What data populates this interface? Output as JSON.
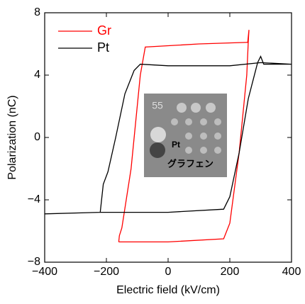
{
  "chart_data": {
    "type": "line",
    "xlabel": "Electric field (kV/cm)",
    "ylabel": "Polarization (nC)",
    "xlim": [
      -400,
      400
    ],
    "ylim": [
      -8,
      8
    ],
    "xticks": [
      {
        "value": -400,
        "label": "−400"
      },
      {
        "value": -200,
        "label": "−200"
      },
      0,
      200,
      400
    ],
    "yticks": [
      {
        "value": -8,
        "label": "−8"
      },
      {
        "value": -4,
        "label": "−4"
      },
      0,
      4,
      8
    ],
    "legend": "upper left",
    "series": [
      {
        "name": "Gr",
        "color": "#ff0000",
        "x": [
          -160,
          0,
          180,
          200,
          230,
          255,
          260,
          262,
          258,
          100,
          -74,
          -90,
          -120,
          -150,
          -158,
          -160
        ],
        "values": [
          -6.7,
          -6.7,
          -6.5,
          -5.5,
          -1,
          4,
          6.2,
          6.9,
          6.1,
          6.0,
          5.8,
          4,
          -2,
          -5.8,
          -6.3,
          -6.7
        ]
      },
      {
        "name": "Pt",
        "color": "#000000",
        "x": [
          -400,
          -220,
          -210,
          -195,
          -170,
          -140,
          -110,
          -90,
          0,
          200,
          300,
          400,
          400,
          -220,
          0,
          180,
          200,
          230,
          260,
          290,
          300,
          310,
          400
        ],
        "values": [
          -4.9,
          -4.8,
          -3,
          -2.2,
          0,
          2.8,
          4.3,
          4.7,
          4.6,
          4.6,
          4.8,
          4.7,
          null,
          -4.8,
          -4.8,
          -4.6,
          -3.8,
          -1,
          2.5,
          4.8,
          5.2,
          4.7,
          4.7
        ]
      }
    ],
    "inset_labels": [
      "55",
      "Pt",
      "グラフェン"
    ]
  }
}
